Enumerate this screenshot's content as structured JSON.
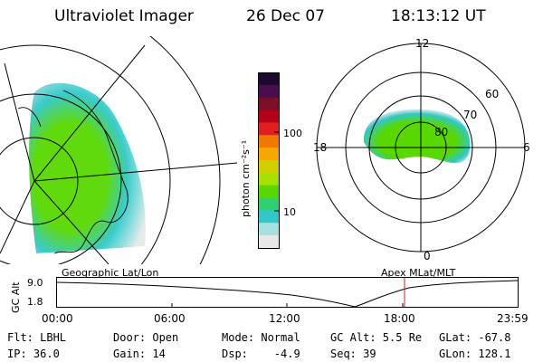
{
  "header": {
    "title": "Ultraviolet Imager",
    "date": "26 Dec 07",
    "time": "18:13:12 UT"
  },
  "colorbar": {
    "unit_label": "photon cm⁻²s⁻¹",
    "ticks": [
      "100",
      "10"
    ],
    "colors": [
      "#1a0a30",
      "#4a0e4e",
      "#7a0f2a",
      "#b5001a",
      "#e02020",
      "#f07a00",
      "#f5a800",
      "#d0d000",
      "#a8e000",
      "#58d800",
      "#30d070",
      "#30c8c8",
      "#a8e0e0",
      "#e8e8e8"
    ]
  },
  "polar_plot": {
    "mlt_labels": {
      "top": "12",
      "left": "18",
      "right": "6",
      "bottom": "0"
    },
    "lat_labels": [
      "60",
      "70",
      "80"
    ]
  },
  "timeline": {
    "left_title": "Geographic Lat/Lon",
    "right_title": "Apex MLat/MLT",
    "y_axis_label": "GC Alt",
    "y_ticks": [
      "9.0",
      "1.8"
    ],
    "x_ticks": [
      "00:00",
      "06:00",
      "12:00",
      "18:00",
      "23:59"
    ],
    "marker_color": "#cc2222"
  },
  "status": {
    "flt": "Flt: LBHL",
    "door": "Door: Open",
    "mode": "Mode: Normal",
    "gc_alt": "GC Alt: 5.5 Re",
    "glat": "GLat: -67.8",
    "ip": "IP: 36.0",
    "gain": "Gain: 14",
    "dsp": "Dsp:    -4.9",
    "seq": "Seq: 39",
    "glon": "GLon: 128.1"
  }
}
